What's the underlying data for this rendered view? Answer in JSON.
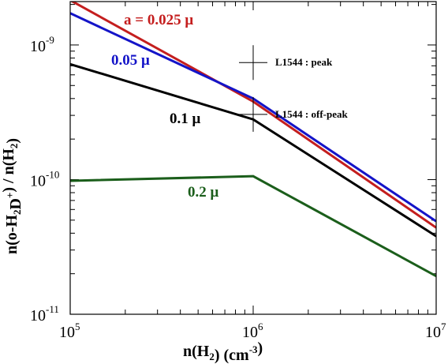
{
  "chart_data": {
    "type": "line",
    "title": "",
    "xlabel": "n(H2) (cm-3)",
    "ylabel": "n(o-H2D+) / n(H2)",
    "xscale": "log",
    "yscale": "log",
    "xlim": [
      100000,
      10000000
    ],
    "ylim": [
      1e-11,
      2.1e-09
    ],
    "grid": false,
    "x_ticks": [
      {
        "base": "10",
        "exp": "5"
      },
      {
        "base": "10",
        "exp": "6"
      },
      {
        "base": "10",
        "exp": "7"
      }
    ],
    "y_ticks": [
      {
        "base": "10",
        "exp": "-11"
      },
      {
        "base": "10",
        "exp": "-10"
      },
      {
        "base": "10",
        "exp": "-9"
      }
    ],
    "series": [
      {
        "name": "a = 0.025 μ",
        "color": "#c41e1e",
        "x": [
          100000,
          1000000,
          10000000
        ],
        "y": [
          2.15e-09,
          3.8e-10,
          4.4e-11
        ]
      },
      {
        "name": "0.05 μ",
        "color": "#1414c8",
        "x": [
          100000,
          1000000,
          10000000
        ],
        "y": [
          1.72e-09,
          4e-10,
          4.9e-11
        ]
      },
      {
        "name": "0.1 μ",
        "color": "#000000",
        "x": [
          100000,
          1000000,
          10000000
        ],
        "y": [
          7.2e-10,
          2.8e-10,
          3.8e-11
        ]
      },
      {
        "name": "0.2 μ",
        "color": "#1b5e1b",
        "x": [
          100000,
          1000000,
          10000000
        ],
        "y": [
          9.8e-11,
          1.06e-10,
          1.92e-11
        ]
      }
    ],
    "observations": [
      {
        "name": "L1544 : peak",
        "x": 1000000,
        "y": 7.4e-10
      },
      {
        "name": "L1544 : off-peak",
        "x": 1000000,
        "y": 3.05e-10
      }
    ]
  }
}
